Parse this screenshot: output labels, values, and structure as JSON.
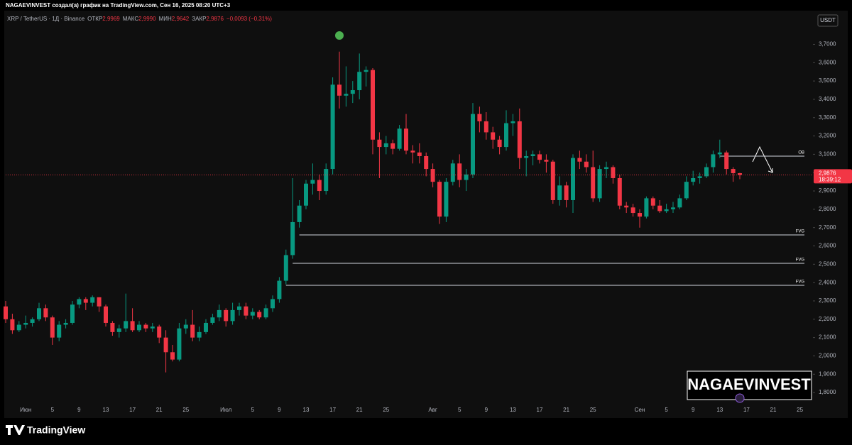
{
  "page": {
    "byline": "NAGAEVINVEST создал(а) график на TradingView.com, Сен 16, 2025 08:20 UTC+3",
    "currency": "USDT",
    "watermark": "NAGAEVINVEST",
    "footer": "TradingView"
  },
  "chart_data": {
    "type": "candlestick",
    "header": {
      "symbol": "XRP / TetherUS · 1Д · Binance",
      "fields": [
        {
          "label": "ОТКР",
          "value": "2,9969"
        },
        {
          "label": "МАКС",
          "value": "2,9990"
        },
        {
          "label": "МИН",
          "value": "2,9642"
        },
        {
          "label": "ЗАКР",
          "value": "2,9876"
        }
      ],
      "change": "−0,0093 (−0,31%)"
    },
    "up_color": "#089981",
    "down_color": "#f23645",
    "categories": [
      null,
      null,
      null,
      "Июн",
      null,
      null,
      null,
      "5",
      null,
      null,
      null,
      "9",
      null,
      null,
      null,
      "13",
      null,
      null,
      null,
      "17",
      null,
      null,
      null,
      "21",
      null,
      null,
      null,
      "25",
      null,
      null,
      null,
      null,
      null,
      "Июл",
      null,
      null,
      null,
      "5",
      null,
      null,
      null,
      "9",
      null,
      null,
      null,
      "13",
      null,
      null,
      null,
      "17",
      null,
      null,
      null,
      "21",
      null,
      null,
      null,
      "25",
      null,
      null,
      null,
      null,
      null,
      null,
      "Авг",
      null,
      null,
      null,
      "5",
      null,
      null,
      null,
      "9",
      null,
      null,
      null,
      "13",
      null,
      null,
      null,
      "17",
      null,
      null,
      null,
      "21",
      null,
      null,
      null,
      "25",
      null,
      null,
      null,
      null,
      null,
      null,
      "Сен",
      null,
      null,
      null,
      "5",
      null,
      null,
      null,
      "9",
      null,
      null,
      null,
      "13",
      null,
      null,
      null,
      "17",
      null,
      null,
      null,
      "21",
      null,
      null,
      null,
      "25",
      null
    ],
    "open": [
      2.27,
      2.2,
      2.14,
      2.17,
      2.18,
      2.2,
      2.26,
      2.21,
      2.1,
      2.17,
      2.18,
      2.28,
      2.31,
      2.29,
      2.32,
      2.27,
      2.18,
      2.13,
      2.15,
      2.19,
      2.14,
      2.17,
      2.15,
      2.16,
      2.1,
      2.02,
      1.98,
      2.15,
      2.17,
      2.1,
      2.13,
      2.18,
      2.21,
      2.25,
      2.19,
      2.25,
      2.27,
      2.22,
      2.24,
      2.21,
      2.26,
      2.31,
      2.41,
      2.55,
      2.73,
      2.82,
      2.94,
      2.96,
      2.9,
      3.02,
      3.48,
      3.42,
      3.43,
      3.45,
      3.55,
      3.56,
      3.18,
      3.14,
      3.16,
      3.13,
      3.24,
      3.12,
      3.11,
      3.09,
      3.02,
      2.95,
      2.76,
      2.95,
      3.05,
      2.96,
      2.99,
      3.32,
      3.28,
      3.22,
      3.18,
      3.14,
      3.27,
      3.28,
      3.08,
      3.09,
      3.1,
      3.07,
      3.06,
      2.85,
      2.93,
      2.85,
      3.08,
      3.06,
      3.03,
      2.86,
      3.02,
      3.03,
      2.97,
      2.82,
      2.81,
      2.78,
      2.76,
      2.86,
      2.82,
      2.79,
      2.8,
      2.81,
      2.86,
      2.95,
      2.97,
      2.98,
      3.03,
      3.1,
      3.11,
      3.02,
      2.9969,
      null,
      null,
      null,
      null,
      null,
      null,
      null,
      null,
      null,
      null
    ],
    "high": [
      2.3,
      2.23,
      2.19,
      2.22,
      2.21,
      2.29,
      2.28,
      2.22,
      2.19,
      2.2,
      2.3,
      2.32,
      2.32,
      2.33,
      2.32,
      2.28,
      2.19,
      2.17,
      2.34,
      2.26,
      2.19,
      2.18,
      2.18,
      2.17,
      2.14,
      2.06,
      2.18,
      2.2,
      2.25,
      2.16,
      2.2,
      2.23,
      2.28,
      2.26,
      2.29,
      2.29,
      2.29,
      2.26,
      2.25,
      2.28,
      2.33,
      2.43,
      2.58,
      2.97,
      2.85,
      2.96,
      3.05,
      2.99,
      3.05,
      3.52,
      3.66,
      3.58,
      3.5,
      3.65,
      3.58,
      3.57,
      3.22,
      3.2,
      3.18,
      3.26,
      3.32,
      3.15,
      3.16,
      3.11,
      3.05,
      2.96,
      2.97,
      3.07,
      3.1,
      3.02,
      3.38,
      3.36,
      3.33,
      3.25,
      3.2,
      3.34,
      3.32,
      3.35,
      3.12,
      3.12,
      3.12,
      3.1,
      3.07,
      2.98,
      2.95,
      3.1,
      3.12,
      3.1,
      3.12,
      3.04,
      3.06,
      3.04,
      2.99,
      2.84,
      2.83,
      2.8,
      2.87,
      2.87,
      2.85,
      2.83,
      2.84,
      2.88,
      2.98,
      3.01,
      3.0,
      3.05,
      3.12,
      3.18,
      3.12,
      3.03,
      2.999,
      null,
      null,
      null,
      null,
      null,
      null,
      null,
      null,
      null,
      null
    ],
    "low": [
      2.18,
      2.12,
      2.13,
      2.15,
      2.16,
      2.19,
      2.19,
      2.06,
      2.08,
      2.15,
      2.17,
      2.26,
      2.25,
      2.27,
      2.24,
      2.16,
      2.11,
      2.1,
      2.13,
      2.13,
      2.13,
      2.13,
      2.13,
      2.07,
      1.91,
      1.97,
      1.97,
      2.12,
      2.08,
      2.08,
      2.12,
      2.17,
      2.19,
      2.16,
      2.17,
      2.22,
      2.2,
      2.2,
      2.2,
      2.2,
      2.24,
      2.29,
      2.39,
      2.53,
      2.7,
      2.8,
      2.88,
      2.85,
      2.88,
      2.99,
      3.35,
      3.36,
      3.38,
      3.4,
      3.47,
      3.1,
      2.97,
      3.1,
      3.1,
      3.12,
      3.1,
      3.05,
      3.05,
      2.98,
      2.92,
      2.72,
      2.73,
      2.93,
      2.92,
      2.9,
      2.97,
      3.22,
      3.18,
      3.13,
      3.1,
      3.12,
      3.2,
      3.02,
      2.98,
      3.04,
      3.05,
      3.0,
      2.83,
      2.82,
      2.81,
      2.78,
      3.02,
      3.0,
      2.84,
      2.84,
      2.97,
      2.94,
      2.8,
      2.78,
      2.76,
      2.7,
      2.75,
      2.8,
      2.78,
      2.78,
      2.78,
      2.8,
      2.85,
      2.93,
      2.94,
      2.97,
      3.0,
      3.08,
      2.99,
      2.95,
      2.9642,
      null,
      null,
      null,
      null,
      null,
      null,
      null,
      null,
      null,
      null
    ],
    "close": [
      2.2,
      2.14,
      2.17,
      2.18,
      2.2,
      2.26,
      2.21,
      2.1,
      2.17,
      2.18,
      2.28,
      2.31,
      2.29,
      2.32,
      2.27,
      2.18,
      2.13,
      2.15,
      2.19,
      2.14,
      2.17,
      2.15,
      2.16,
      2.1,
      2.02,
      1.98,
      2.15,
      2.17,
      2.1,
      2.13,
      2.18,
      2.21,
      2.25,
      2.19,
      2.25,
      2.27,
      2.22,
      2.24,
      2.21,
      2.26,
      2.31,
      2.41,
      2.55,
      2.73,
      2.82,
      2.94,
      2.96,
      2.9,
      3.02,
      3.48,
      3.42,
      3.43,
      3.45,
      3.55,
      3.56,
      3.18,
      3.14,
      3.16,
      3.13,
      3.24,
      3.12,
      3.11,
      3.09,
      3.02,
      2.95,
      2.76,
      2.95,
      3.05,
      2.96,
      2.99,
      3.32,
      3.28,
      3.22,
      3.18,
      3.14,
      3.27,
      3.28,
      3.08,
      3.09,
      3.1,
      3.07,
      3.06,
      2.85,
      2.93,
      2.85,
      3.08,
      3.06,
      3.03,
      2.86,
      3.02,
      3.03,
      2.97,
      2.82,
      2.81,
      2.78,
      2.76,
      2.86,
      2.82,
      2.79,
      2.8,
      2.81,
      2.86,
      2.95,
      2.97,
      2.98,
      3.03,
      3.1,
      3.11,
      3.02,
      2.9969,
      2.9876,
      null,
      null,
      null,
      null,
      null,
      null,
      null,
      null,
      null,
      null
    ],
    "ylim": [
      1.75,
      3.88
    ],
    "yticks": [
      {
        "value": 1.8,
        "label": "1,8000"
      },
      {
        "value": 1.9,
        "label": "1,9000"
      },
      {
        "value": 2.0,
        "label": "2,0000"
      },
      {
        "value": 2.1,
        "label": "2,1000"
      },
      {
        "value": 2.2,
        "label": "2,2000"
      },
      {
        "value": 2.3,
        "label": "2,3000"
      },
      {
        "value": 2.4,
        "label": "2,4000"
      },
      {
        "value": 2.5,
        "label": "2,5000"
      },
      {
        "value": 2.6,
        "label": "2,6000"
      },
      {
        "value": 2.7,
        "label": "2,7000"
      },
      {
        "value": 2.8,
        "label": "2,8000"
      },
      {
        "value": 2.9,
        "label": "2,9000"
      },
      {
        "value": 3.0,
        "label": "3,0000"
      },
      {
        "value": 3.1,
        "label": "3,1000"
      },
      {
        "value": 3.2,
        "label": "3,2000"
      },
      {
        "value": 3.3,
        "label": "3,3000"
      },
      {
        "value": 3.4,
        "label": "3,4000"
      },
      {
        "value": 3.5,
        "label": "3,5000"
      },
      {
        "value": 3.6,
        "label": "3,6000"
      },
      {
        "value": 3.7,
        "label": "3,7000"
      }
    ],
    "grid": false,
    "last_price": {
      "value": 2.9876,
      "label": "2,9876"
    },
    "countdown": "18:39:12",
    "annotations": [
      {
        "label": "OB",
        "value": 3.09
      },
      {
        "label": "FVG",
        "value": 2.66
      },
      {
        "label": "FVG",
        "value": 2.505
      },
      {
        "label": "FVG",
        "value": 2.385
      }
    ]
  }
}
